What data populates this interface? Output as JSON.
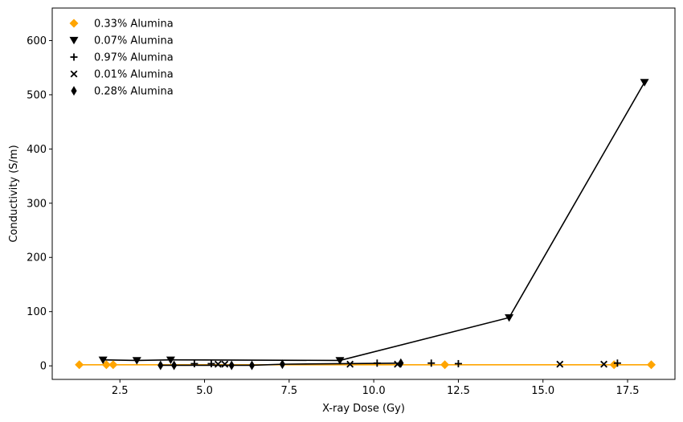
{
  "chart_data": {
    "type": "scatter",
    "title": "",
    "xlabel": "X-ray Dose (Gy)",
    "ylabel": "Conductivity (S/m)",
    "xlim": [
      0.5,
      18.9
    ],
    "ylim": [
      -25,
      660
    ],
    "xticks": [
      2.5,
      5.0,
      7.5,
      10.0,
      12.5,
      15.0,
      17.5
    ],
    "xtick_labels": [
      "2.5",
      "5.0",
      "7.5",
      "10.0",
      "12.5",
      "15.0",
      "17.5"
    ],
    "yticks": [
      0,
      100,
      200,
      300,
      400,
      500,
      600
    ],
    "ytick_labels": [
      "0",
      "100",
      "200",
      "300",
      "400",
      "500",
      "600"
    ],
    "grid": false,
    "legend_position": "top-left",
    "series": [
      {
        "name": "0.33% Alumina",
        "marker": "diamond",
        "color": "#FFA500",
        "line": true,
        "line_color": "#FFA500",
        "points": [
          [
            1.3,
            2
          ],
          [
            2.1,
            2
          ],
          [
            2.3,
            2
          ],
          [
            12.1,
            2
          ],
          [
            17.1,
            2
          ],
          [
            18.2,
            2
          ]
        ]
      },
      {
        "name": "0.07% Alumina",
        "marker": "triangle-down",
        "color": "#000000",
        "line": true,
        "line_color": "#000000",
        "points": [
          [
            2.0,
            11
          ],
          [
            3.0,
            10
          ],
          [
            4.0,
            11
          ],
          [
            9.0,
            10
          ],
          [
            14.0,
            89
          ],
          [
            18.0,
            523
          ]
        ]
      },
      {
        "name": "0.97% Alumina",
        "marker": "plus",
        "color": "#000000",
        "line": false,
        "points": [
          [
            4.7,
            4
          ],
          [
            5.2,
            4
          ],
          [
            10.1,
            5
          ],
          [
            11.7,
            5
          ],
          [
            12.5,
            4
          ],
          [
            17.2,
            5
          ]
        ]
      },
      {
        "name": "0.01% Alumina",
        "marker": "x",
        "color": "#000000",
        "line": false,
        "points": [
          [
            5.4,
            3
          ],
          [
            5.6,
            3
          ],
          [
            9.3,
            3
          ],
          [
            10.7,
            3
          ],
          [
            15.5,
            3
          ],
          [
            16.8,
            3
          ]
        ]
      },
      {
        "name": "0.28% Alumina",
        "marker": "thin-diamond",
        "color": "#000000",
        "line": true,
        "line_color": "#000000",
        "points": [
          [
            3.7,
            1
          ],
          [
            4.1,
            1
          ],
          [
            5.8,
            1
          ],
          [
            6.4,
            1
          ],
          [
            7.3,
            3
          ],
          [
            10.8,
            5
          ]
        ]
      }
    ]
  }
}
